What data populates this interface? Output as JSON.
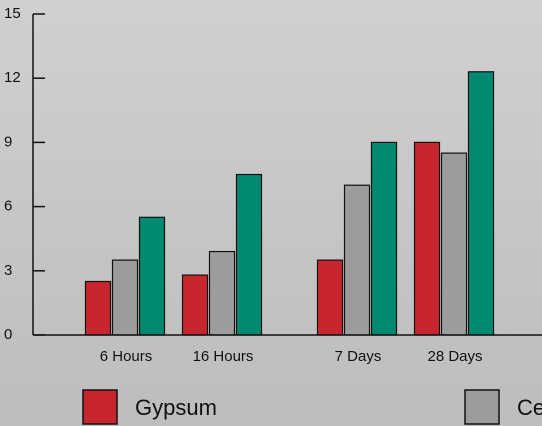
{
  "chart_data": {
    "type": "bar",
    "categories": [
      "6 Hours",
      "16 Hours",
      "7 Days",
      "28 Days"
    ],
    "series": [
      {
        "name": "Gypsum",
        "color": "#c8262f",
        "values": [
          2.5,
          2.8,
          3.5,
          9
        ]
      },
      {
        "name": "Ce",
        "color": "#9c9c9c",
        "values": [
          3.5,
          3.9,
          7,
          8.5
        ]
      },
      {
        "color": "#008a70",
        "values": [
          5.5,
          7.5,
          9,
          12.3
        ]
      }
    ],
    "ylim": [
      0,
      15
    ],
    "yticks": [
      0,
      3,
      6,
      9,
      12,
      15
    ]
  }
}
